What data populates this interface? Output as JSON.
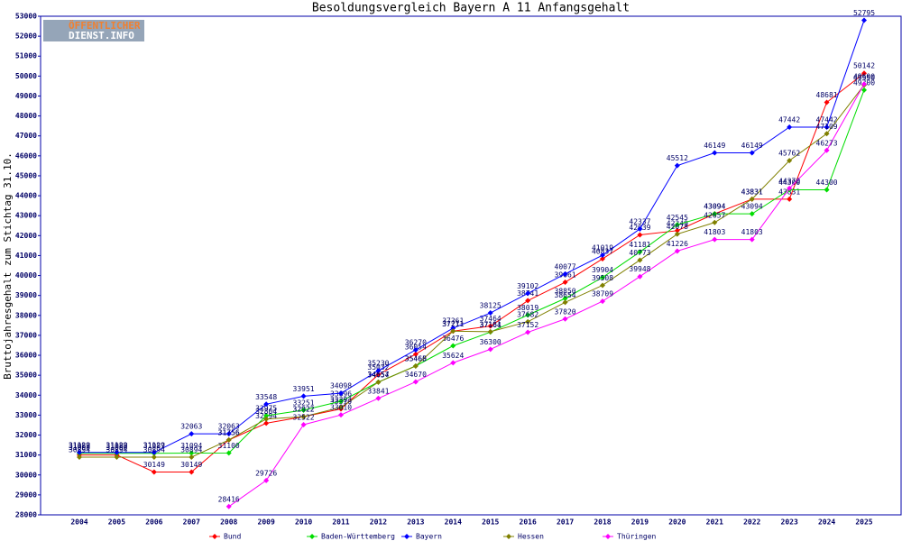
{
  "chart_data": {
    "type": "line",
    "title": "Besoldungsvergleich Bayern A 11 Anfangsgehalt",
    "ylabel": "Bruttojahresgehalt zum Stichtag 31.10.",
    "logo": [
      "ÖFFENTLICHER",
      "DIENST.INFO"
    ],
    "categories": [
      "2004",
      "2005",
      "2006",
      "2007",
      "2008",
      "2009",
      "2010",
      "2011",
      "2012",
      "2013",
      "2014",
      "2015",
      "2016",
      "2017",
      "2018",
      "2019",
      "2020",
      "2021",
      "2022",
      "2023",
      "2024",
      "2025"
    ],
    "ylim": [
      28000,
      53000
    ],
    "yticks": [
      28000,
      29000,
      30000,
      31000,
      32000,
      33000,
      34000,
      35000,
      36000,
      37000,
      38000,
      39000,
      40000,
      41000,
      42000,
      43000,
      44000,
      45000,
      46000,
      47000,
      48000,
      49000,
      50000,
      51000,
      52000,
      53000
    ],
    "legend": "bottom",
    "series": [
      {
        "name": "Bund",
        "color": "#ff0000",
        "values": [
          31000,
          31000,
          30149,
          30149,
          31756,
          32594,
          32922,
          33310,
          35032,
          36054,
          37211,
          37464,
          38741,
          39661,
          40837,
          42039,
          42249,
          43094,
          43831,
          43831,
          48681,
          50142
        ]
      },
      {
        "name": "Baden-Württemberg",
        "color": "#00dd00",
        "values": [
          31087,
          31087,
          31087,
          31094,
          31100,
          32975,
          33251,
          33696,
          34657,
          35465,
          36476,
          37164,
          38019,
          38850,
          39904,
          41181,
          42545,
          43094,
          43094,
          44300,
          44300,
          49300
        ]
      },
      {
        "name": "Bayern",
        "color": "#0000ff",
        "values": [
          31129,
          31129,
          31129,
          32063,
          32063,
          33548,
          33951,
          34098,
          35230,
          36270,
          37361,
          38125,
          39102,
          40077,
          41019,
          42337,
          45512,
          46149,
          46149,
          47442,
          47442,
          52795
        ]
      },
      {
        "name": "Hessen",
        "color": "#808000",
        "values": [
          30894,
          30894,
          30894,
          30894,
          31756,
          32804,
          32922,
          33393,
          34654,
          35460,
          37211,
          37181,
          37682,
          38654,
          39508,
          40773,
          42078,
          42657,
          43831,
          45762,
          47109,
          49550
        ]
      },
      {
        "name": "Thüringen",
        "color": "#ff00ff",
        "values": [
          null,
          null,
          null,
          null,
          28416,
          29726,
          32522,
          33010,
          33841,
          34670,
          35624,
          36300,
          37152,
          37820,
          38709,
          39948,
          41226,
          41803,
          41803,
          44370,
          46273,
          49600
        ]
      }
    ]
  }
}
